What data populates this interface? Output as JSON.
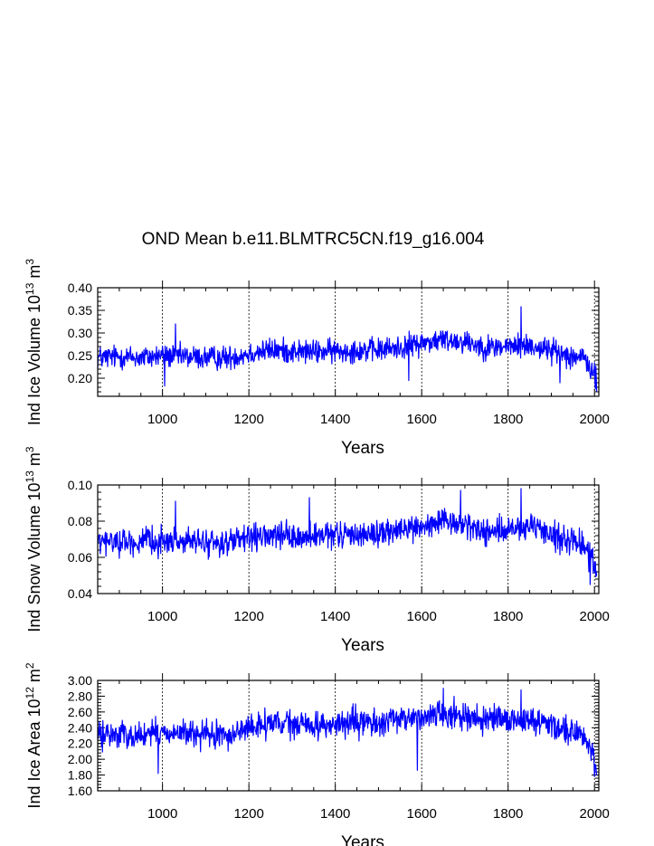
{
  "figure": {
    "title": "OND Mean b.e11.BLMTRC5CN.f19_g16.004",
    "line_color": "#0000ff",
    "grid_color": "#000000"
  },
  "chart_data": [
    {
      "type": "line",
      "id": "ice-volume",
      "title": "OND Mean b.e11.BLMTRC5CN.f19_g16.004",
      "xlabel": "Years",
      "ylabel_main": "Ind Ice Volume 10",
      "ylabel_exp": "13",
      "ylabel_unit": " m",
      "ylabel_unit_exp": "3",
      "xlim": [
        850,
        2010
      ],
      "ylim": [
        0.16,
        0.4
      ],
      "xticks": [
        1000,
        1200,
        1400,
        1600,
        1800,
        2000
      ],
      "xtick_labels": [
        "1000",
        "1200",
        "1400",
        "1600",
        "1800",
        "2000"
      ],
      "yticks": [
        0.2,
        0.25,
        0.3,
        0.35,
        0.4
      ],
      "ytick_labels": [
        "0.20",
        "0.25",
        "0.30",
        "0.35",
        "0.40"
      ],
      "dashed_grid_x": [
        1000,
        1200,
        1400,
        1600,
        1800,
        2000
      ],
      "series": [
        {
          "name": "Ind Ice Volume",
          "anchors_x": [
            850,
            900,
            950,
            1000,
            1050,
            1100,
            1150,
            1200,
            1250,
            1300,
            1350,
            1400,
            1450,
            1500,
            1550,
            1600,
            1650,
            1700,
            1750,
            1800,
            1850,
            1900,
            1950,
            1980,
            2000,
            2005
          ],
          "anchors_y": [
            0.245,
            0.248,
            0.245,
            0.25,
            0.248,
            0.245,
            0.245,
            0.255,
            0.262,
            0.26,
            0.258,
            0.26,
            0.262,
            0.262,
            0.268,
            0.278,
            0.285,
            0.282,
            0.268,
            0.27,
            0.272,
            0.262,
            0.25,
            0.24,
            0.205,
            0.19
          ],
          "noise_amplitude": 0.02,
          "spikes": [
            [
              1005,
              0.183
            ],
            [
              1030,
              0.32
            ],
            [
              1570,
              0.195
            ],
            [
              1830,
              0.358
            ],
            [
              1920,
              0.19
            ]
          ]
        }
      ]
    },
    {
      "type": "line",
      "id": "snow-volume",
      "xlabel": "Years",
      "ylabel_main": "Ind Snow Volume 10",
      "ylabel_exp": "13",
      "ylabel_unit": " m",
      "ylabel_unit_exp": "3",
      "xlim": [
        850,
        2010
      ],
      "ylim": [
        0.04,
        0.1
      ],
      "xticks": [
        1000,
        1200,
        1400,
        1600,
        1800,
        2000
      ],
      "xtick_labels": [
        "1000",
        "1200",
        "1400",
        "1600",
        "1800",
        "2000"
      ],
      "yticks": [
        0.04,
        0.06,
        0.08,
        0.1
      ],
      "ytick_labels": [
        "0.04",
        "0.06",
        "0.08",
        "0.10"
      ],
      "dashed_grid_x": [
        1000,
        1200,
        1400,
        1600,
        1800,
        2000
      ],
      "series": [
        {
          "name": "Ind Snow Volume",
          "anchors_x": [
            850,
            900,
            950,
            1000,
            1050,
            1100,
            1150,
            1200,
            1250,
            1300,
            1350,
            1400,
            1450,
            1500,
            1550,
            1600,
            1650,
            1700,
            1750,
            1800,
            1850,
            1900,
            1950,
            1980,
            2000,
            2005
          ],
          "anchors_y": [
            0.068,
            0.069,
            0.068,
            0.069,
            0.069,
            0.068,
            0.068,
            0.07,
            0.072,
            0.071,
            0.071,
            0.072,
            0.073,
            0.073,
            0.075,
            0.077,
            0.079,
            0.078,
            0.074,
            0.075,
            0.076,
            0.073,
            0.069,
            0.066,
            0.056,
            0.051
          ],
          "noise_amplitude": 0.0055,
          "spikes": [
            [
              1030,
              0.091
            ],
            [
              1340,
              0.093
            ],
            [
              1690,
              0.097
            ],
            [
              1830,
              0.098
            ],
            [
              1990,
              0.045
            ]
          ]
        }
      ]
    },
    {
      "type": "line",
      "id": "ice-area",
      "xlabel": "Years",
      "ylabel_main": "Ind Ice Area 10",
      "ylabel_exp": "12",
      "ylabel_unit": " m",
      "ylabel_unit_exp": "2",
      "xlim": [
        850,
        2010
      ],
      "ylim": [
        1.6,
        3.0
      ],
      "xticks": [
        1000,
        1200,
        1400,
        1600,
        1800,
        2000
      ],
      "xtick_labels": [
        "1000",
        "1200",
        "1400",
        "1600",
        "1800",
        "2000"
      ],
      "yticks": [
        1.6,
        1.8,
        2.0,
        2.2,
        2.4,
        2.6,
        2.8,
        3.0
      ],
      "ytick_labels": [
        "1.60",
        "1.80",
        "2.00",
        "2.20",
        "2.40",
        "2.60",
        "2.80",
        "3.00"
      ],
      "dashed_grid_x": [
        1000,
        1200,
        1400,
        1600,
        1800,
        2000
      ],
      "series": [
        {
          "name": "Ind Ice Area",
          "anchors_x": [
            850,
            900,
            950,
            1000,
            1050,
            1100,
            1150,
            1200,
            1250,
            1300,
            1350,
            1400,
            1450,
            1500,
            1550,
            1600,
            1650,
            1700,
            1750,
            1800,
            1850,
            1900,
            1950,
            1980,
            2000,
            2005
          ],
          "anchors_y": [
            2.3,
            2.32,
            2.3,
            2.34,
            2.33,
            2.3,
            2.3,
            2.4,
            2.45,
            2.44,
            2.43,
            2.44,
            2.46,
            2.46,
            2.5,
            2.55,
            2.58,
            2.56,
            2.48,
            2.49,
            2.5,
            2.45,
            2.36,
            2.25,
            2.0,
            1.9
          ],
          "noise_amplitude": 0.13,
          "spikes": [
            [
              990,
              1.82
            ],
            [
              1590,
              1.86
            ],
            [
              1650,
              2.9
            ],
            [
              1830,
              2.88
            ],
            [
              2000,
              1.78
            ]
          ]
        }
      ]
    }
  ]
}
